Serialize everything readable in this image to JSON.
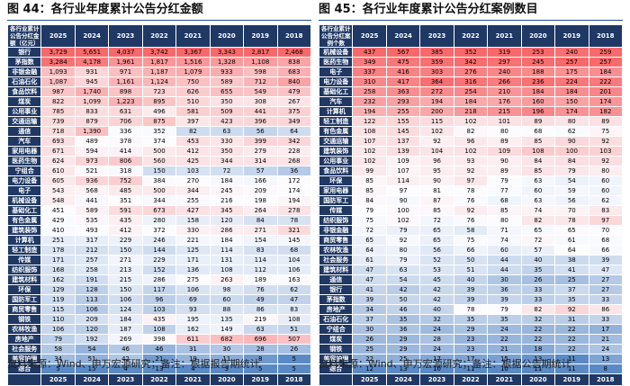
{
  "left": {
    "title": "图 44：各行业年度累计公告分红金额",
    "header_label": "各行业累计公告分红金额（亿元）",
    "columns": [
      "2025",
      "2024",
      "2023",
      "2022",
      "2021",
      "2020",
      "2019",
      "2018"
    ],
    "rows": [
      {
        "name": "银行",
        "values": [
          "3,729",
          "5,651",
          "4,037",
          "3,742",
          "3,367",
          "3,343",
          "2,817",
          "2,468"
        ]
      },
      {
        "name": "茅指数",
        "values": [
          "3,284",
          "4,178",
          "1,961",
          "1,817",
          "1,516",
          "1,328",
          "1,108",
          "838"
        ]
      },
      {
        "name": "非银金融",
        "values": [
          "1,093",
          "931",
          "971",
          "1,187",
          "1,079",
          "933",
          "598",
          "683"
        ]
      },
      {
        "name": "石油石化",
        "values": [
          "1,087",
          "945",
          "1,161",
          "1,124",
          "750",
          "589",
          "712",
          "840"
        ]
      },
      {
        "name": "食品饮料",
        "values": [
          "987",
          "1,740",
          "898",
          "723",
          "626",
          "655",
          "549",
          "479"
        ]
      },
      {
        "name": "煤炭",
        "values": [
          "822",
          "1,099",
          "1,223",
          "895",
          "510",
          "350",
          "308",
          "267"
        ]
      },
      {
        "name": "公用事业",
        "values": [
          "785",
          "833",
          "631",
          "496",
          "581",
          "509",
          "441",
          "375"
        ]
      },
      {
        "name": "交通运输",
        "values": [
          "739",
          "879",
          "706",
          "875",
          "397",
          "423",
          "396",
          "349"
        ]
      },
      {
        "name": "通信",
        "values": [
          "718",
          "1,390",
          "336",
          "352",
          "82",
          "63",
          "56",
          "64"
        ]
      },
      {
        "name": "汽车",
        "values": [
          "693",
          "489",
          "378",
          "374",
          "453",
          "330",
          "399",
          "342"
        ]
      },
      {
        "name": "家用电器",
        "values": [
          "671",
          "594",
          "414",
          "500",
          "412",
          "350",
          "279",
          "228"
        ]
      },
      {
        "name": "医药生物",
        "values": [
          "624",
          "973",
          "806",
          "560",
          "425",
          "344",
          "314",
          "268"
        ]
      },
      {
        "name": "宁组合",
        "values": [
          "610",
          "521",
          "318",
          "150",
          "103",
          "72",
          "57",
          "36"
        ]
      },
      {
        "name": "电力设备",
        "values": [
          "605",
          "936",
          "752",
          "384",
          "270",
          "184",
          "166",
          "172"
        ]
      },
      {
        "name": "电子",
        "values": [
          "543",
          "568",
          "485",
          "500",
          "344",
          "245",
          "209",
          "174"
        ]
      },
      {
        "name": "机械设备",
        "values": [
          "548",
          "441",
          "351",
          "344",
          "255",
          "216",
          "198",
          "194"
        ]
      },
      {
        "name": "基础化工",
        "values": [
          "451",
          "589",
          "591",
          "673",
          "427",
          "345",
          "264",
          "278"
        ]
      },
      {
        "name": "有色金属",
        "values": [
          "429",
          "535",
          "435",
          "280",
          "158",
          "120",
          "84",
          "78"
        ]
      },
      {
        "name": "建筑装饰",
        "values": [
          "410",
          "493",
          "412",
          "372",
          "330",
          "286",
          "271",
          "321"
        ]
      },
      {
        "name": "计算机",
        "values": [
          "251",
          "317",
          "229",
          "246",
          "221",
          "184",
          "154",
          "145"
        ]
      },
      {
        "name": "轻工制造",
        "values": [
          "178",
          "212",
          "150",
          "144",
          "125",
          "114",
          "83",
          "68"
        ]
      },
      {
        "name": "传媒",
        "values": [
          "171",
          "257",
          "271",
          "229",
          "171",
          "131",
          "114",
          "104"
        ]
      },
      {
        "name": "纺织服饰",
        "values": [
          "168",
          "258",
          "213",
          "152",
          "136",
          "108",
          "112",
          "106"
        ]
      },
      {
        "name": "建筑材料",
        "values": [
          "162",
          "191",
          "215",
          "286",
          "275",
          "263",
          "189",
          "163"
        ]
      },
      {
        "name": "环保",
        "values": [
          "129",
          "128",
          "150",
          "117",
          "106",
          "98",
          "76",
          "62"
        ]
      },
      {
        "name": "国防军工",
        "values": [
          "119",
          "113",
          "106",
          "96",
          "69",
          "60",
          "49",
          "47"
        ]
      },
      {
        "name": "商贸零售",
        "values": [
          "115",
          "106",
          "124",
          "103",
          "93",
          "88",
          "86",
          "83"
        ]
      },
      {
        "name": "钢铁",
        "values": [
          "110",
          "209",
          "184",
          "435",
          "195",
          "135",
          "219",
          "108"
        ]
      },
      {
        "name": "农林牧渔",
        "values": [
          "106",
          "120",
          "187",
          "108",
          "162",
          "149",
          "63",
          "51"
        ]
      },
      {
        "name": "房地产",
        "values": [
          "79",
          "192",
          "269",
          "398",
          "611",
          "682",
          "696",
          "507"
        ]
      },
      {
        "name": "社会服务",
        "values": [
          "58",
          "54",
          "46",
          "46",
          "31",
          "30",
          "28",
          "26"
        ]
      },
      {
        "name": "美容护理",
        "values": [
          "34",
          "51",
          "42",
          "21",
          "19",
          "11",
          "8",
          "5"
        ]
      },
      {
        "name": "综合",
        "values": [
          "5",
          "15",
          "4",
          "13",
          "4",
          "3",
          "5",
          "5"
        ]
      }
    ]
  },
  "right": {
    "title": "图 45：各行业年度累计公告分红案例数目",
    "header_label": "各行业累计公告分红案例个数",
    "columns": [
      "2025",
      "2024",
      "2023",
      "2022",
      "2021",
      "2020",
      "2019",
      "2018"
    ],
    "rows": [
      {
        "name": "机械设备",
        "values": [
          "437",
          "567",
          "385",
          "352",
          "319",
          "253",
          "240",
          "259"
        ]
      },
      {
        "name": "医药生物",
        "values": [
          "349",
          "475",
          "359",
          "342",
          "297",
          "245",
          "257",
          "257"
        ]
      },
      {
        "name": "电子",
        "values": [
          "337",
          "416",
          "303",
          "276",
          "240",
          "188",
          "175",
          "184"
        ]
      },
      {
        "name": "电力设备",
        "values": [
          "310",
          "417",
          "364",
          "316",
          "266",
          "236",
          "224",
          "222"
        ]
      },
      {
        "name": "基础化工",
        "values": [
          "258",
          "363",
          "272",
          "254",
          "210",
          "184",
          "184",
          "201"
        ]
      },
      {
        "name": "汽车",
        "values": [
          "232",
          "293",
          "194",
          "184",
          "176",
          "160",
          "150",
          "174"
        ]
      },
      {
        "name": "计算机",
        "values": [
          "194",
          "255",
          "200",
          "218",
          "215",
          "196",
          "174",
          "182"
        ]
      },
      {
        "name": "轻工制造",
        "values": [
          "122",
          "155",
          "115",
          "102",
          "101",
          "89",
          "80",
          "89"
        ]
      },
      {
        "name": "有色金属",
        "values": [
          "108",
          "145",
          "102",
          "82",
          "80",
          "68",
          "62",
          "75"
        ]
      },
      {
        "name": "交通运输",
        "values": [
          "107",
          "137",
          "92",
          "96",
          "89",
          "85",
          "90",
          "92"
        ]
      },
      {
        "name": "建筑装饰",
        "values": [
          "102",
          "139",
          "104",
          "102",
          "109",
          "108",
          "100",
          "103"
        ]
      },
      {
        "name": "公用事业",
        "values": [
          "102",
          "109",
          "96",
          "93",
          "90",
          "84",
          "84",
          "92"
        ]
      },
      {
        "name": "食品饮料",
        "values": [
          "99",
          "107",
          "95",
          "92",
          "89",
          "85",
          "79",
          "80"
        ]
      },
      {
        "name": "环保",
        "values": [
          "85",
          "114",
          "90",
          "97",
          "79",
          "63",
          "54",
          "60"
        ]
      },
      {
        "name": "家用电器",
        "values": [
          "85",
          "97",
          "81",
          "78",
          "77",
          "60",
          "59",
          "60"
        ]
      },
      {
        "name": "国防军工",
        "values": [
          "84",
          "90",
          "87",
          "76",
          "68",
          "63",
          "56",
          "62"
        ]
      },
      {
        "name": "传媒",
        "values": [
          "79",
          "100",
          "85",
          "92",
          "85",
          "74",
          "70",
          "83"
        ]
      },
      {
        "name": "纺织服饰",
        "values": [
          "75",
          "102",
          "72",
          "76",
          "80",
          "82",
          "78",
          "97"
        ]
      },
      {
        "name": "非银金融",
        "values": [
          "72",
          "79",
          "65",
          "58",
          "71",
          "65",
          "65",
          "70"
        ]
      },
      {
        "name": "商贸零售",
        "values": [
          "65",
          "92",
          "65",
          "75",
          "74",
          "72",
          "61",
          "68"
        ]
      },
      {
        "name": "农林牧渔",
        "values": [
          "64",
          "80",
          "56",
          "66",
          "60",
          "57",
          "64",
          "66"
        ]
      },
      {
        "name": "社会服务",
        "values": [
          "61",
          "79",
          "52",
          "50",
          "44",
          "40",
          "38",
          "39"
        ]
      },
      {
        "name": "建筑材料",
        "values": [
          "47",
          "63",
          "53",
          "51",
          "44",
          "35",
          "41",
          "47"
        ]
      },
      {
        "name": "通信",
        "values": [
          "47",
          "54",
          "45",
          "40",
          "30",
          "26",
          "25",
          "27"
        ]
      },
      {
        "name": "银行",
        "values": [
          "41",
          "42",
          "42",
          "39",
          "36",
          "33",
          "37",
          "27"
        ]
      },
      {
        "name": "茅指数",
        "values": [
          "39",
          "50",
          "42",
          "39",
          "39",
          "33",
          "35",
          "33"
        ]
      },
      {
        "name": "房地产",
        "values": [
          "34",
          "46",
          "40",
          "78",
          "79",
          "82",
          "92",
          "86"
        ]
      },
      {
        "name": "石油石化",
        "values": [
          "37",
          "35",
          "32",
          "35",
          "35",
          "32",
          "31",
          "33"
        ]
      },
      {
        "name": "宁组合",
        "values": [
          "30",
          "36",
          "24",
          "29",
          "24",
          "22",
          "22",
          "17"
        ]
      },
      {
        "name": "煤炭",
        "values": [
          "26",
          "29",
          "28",
          "23",
          "22",
          "22",
          "22",
          "21"
        ]
      },
      {
        "name": "钢铁",
        "values": [
          "25",
          "29",
          "24",
          "23",
          "21",
          "18",
          "22",
          "24"
        ]
      },
      {
        "name": "美容护理",
        "values": [
          "22",
          "25",
          "17",
          "17",
          "15",
          "13",
          "11",
          "13"
        ]
      },
      {
        "name": "综合",
        "values": [
          "12",
          "13",
          "10",
          "11",
          "10",
          "11",
          "11",
          "8"
        ]
      }
    ]
  },
  "sources": [
    "资料来源：Wind、申万宏源研究；备注：根据报告期统计",
    "资料来源：Wind、申万宏源研究；备注：根据公告期统计"
  ]
}
